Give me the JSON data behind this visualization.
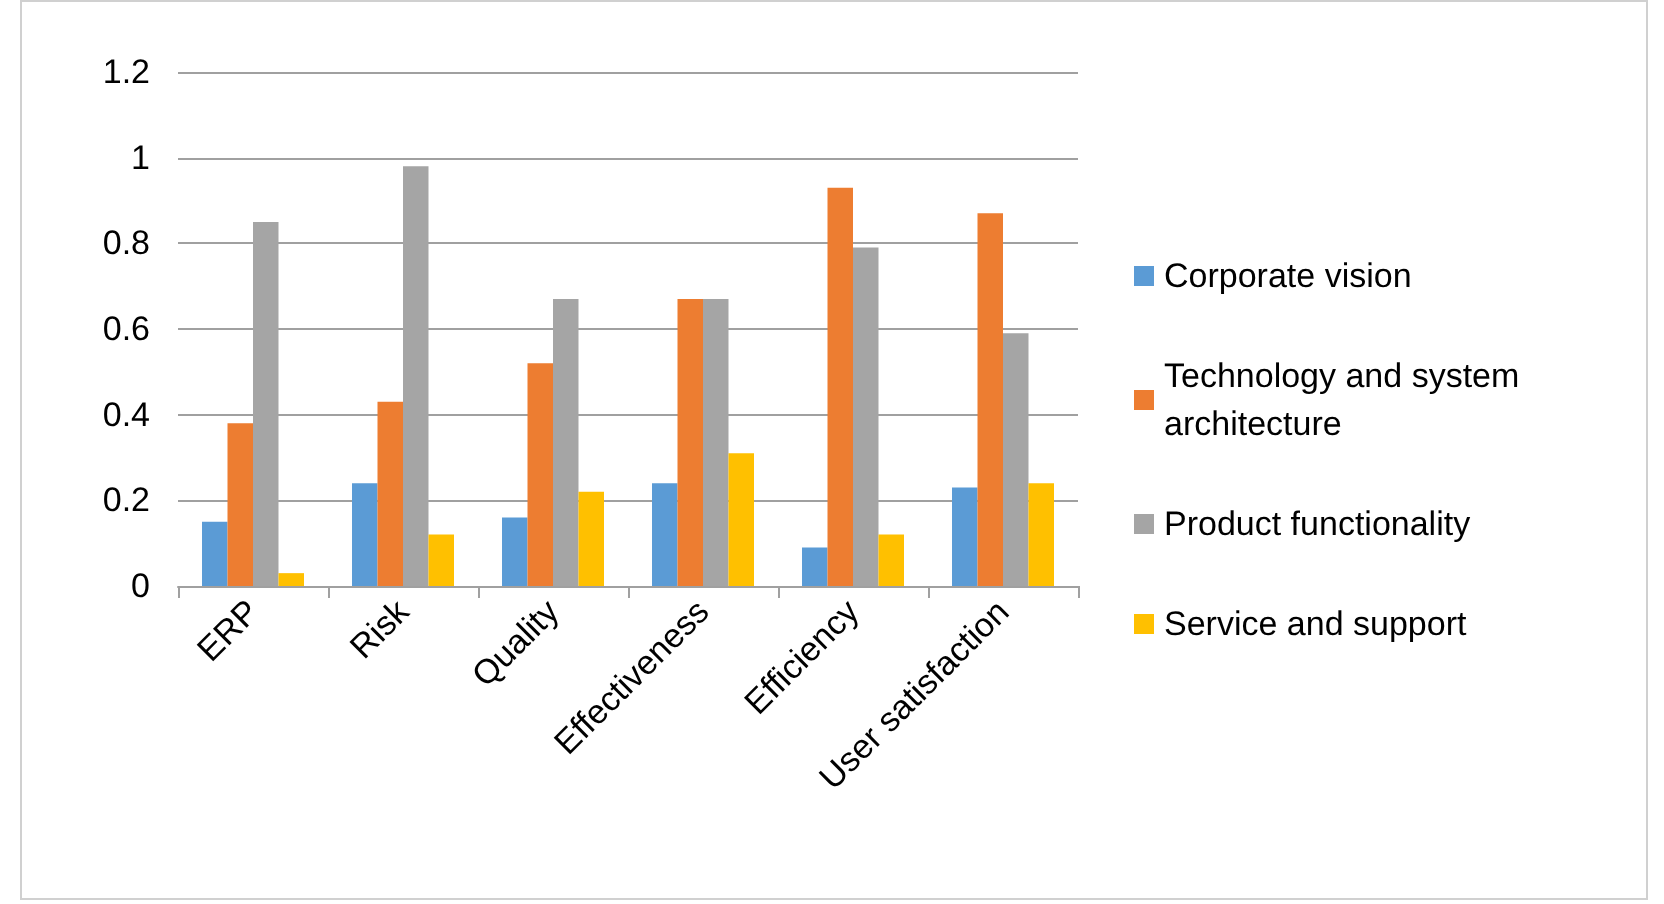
{
  "chart_data": {
    "type": "bar",
    "categories": [
      "ERP",
      "Risk",
      "Quality",
      "Effectiveness",
      "Efficiency",
      "User satisfaction"
    ],
    "series": [
      {
        "name": "Corporate vision",
        "color": "#5b9bd5",
        "values": [
          0.15,
          0.24,
          0.16,
          0.24,
          0.09,
          0.23
        ]
      },
      {
        "name": "Technology and system architecture",
        "color": "#ed7d31",
        "values": [
          0.38,
          0.43,
          0.52,
          0.67,
          0.93,
          0.87
        ]
      },
      {
        "name": "Product functionality",
        "color": "#a5a5a5",
        "values": [
          0.85,
          0.98,
          0.67,
          0.67,
          0.79,
          0.59
        ]
      },
      {
        "name": "Service and support",
        "color": "#ffc000",
        "values": [
          0.03,
          0.12,
          0.22,
          0.31,
          0.12,
          0.24
        ]
      }
    ],
    "ylim": [
      0,
      1.2
    ],
    "yticks": [
      0,
      0.2,
      0.4,
      0.6,
      0.8,
      1,
      1.2
    ],
    "grid": "y",
    "legend": "right"
  }
}
